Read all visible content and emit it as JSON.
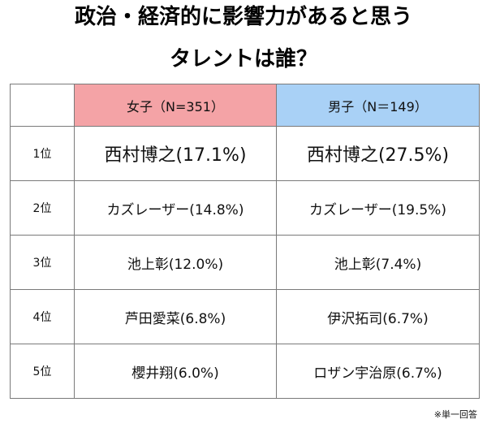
{
  "title_line1": "政治・経済的に影響力があると思う",
  "title_line2": "タレントは誰？",
  "note": "※単一回答",
  "chart_data": {
    "type": "table",
    "title": "政治・経済的に影響力があると思うタレントは誰？",
    "columns": [
      "",
      "女子（N=351）",
      "男子（N＝149）"
    ],
    "header_colors": {
      "female": "#f4a3a6",
      "male": "#a9d1f6"
    },
    "rows": [
      {
        "rank": "1位",
        "female": "西村博之(17.1%)",
        "male": "西村博之(27.5%)"
      },
      {
        "rank": "2位",
        "female": "カズレーザー(14.8%)",
        "male": "カズレーザー(19.5%)"
      },
      {
        "rank": "3位",
        "female": "池上彰(12.0%)",
        "male": "池上彰(7.4%)"
      },
      {
        "rank": "4位",
        "female": "芦田愛菜(6.8%)",
        "male": "伊沢拓司(6.7%)"
      },
      {
        "rank": "5位",
        "female": "櫻井翔(6.0%)",
        "male": "ロザン宇治原(6.7%)"
      }
    ],
    "series": [
      {
        "name": "女子（N=351）",
        "names": [
          "西村博之",
          "カズレーザー",
          "池上彰",
          "芦田愛菜",
          "櫻井翔"
        ],
        "values": [
          17.1,
          14.8,
          12.0,
          6.8,
          6.0
        ]
      },
      {
        "name": "男子（N＝149）",
        "names": [
          "西村博之",
          "カズレーザー",
          "池上彰",
          "伊沢拓司",
          "ロザン宇治原"
        ],
        "values": [
          27.5,
          19.5,
          7.4,
          6.7,
          6.7
        ]
      }
    ]
  }
}
